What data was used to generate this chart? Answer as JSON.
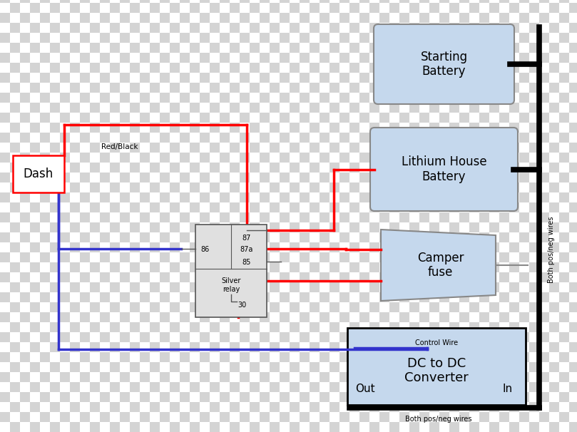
{
  "bg_light": "#ffffff",
  "bg_dark": "#d4d4d4",
  "box_fill": "#c5d8ed",
  "box_edge": "#888888",
  "wire_red": "#ff0000",
  "wire_blue": "#3333cc",
  "wire_black": "#000000",
  "checker_size": 14,
  "fig_w": 8.09,
  "fig_h": 6.06,
  "dpi": 100,
  "relay_label_87": "87",
  "relay_label_87a": "87a",
  "relay_label_85": "85",
  "relay_label_86": "86",
  "relay_label_30": "30",
  "relay_label_name": "Silver\nrelay",
  "dash_label": "Dash",
  "sb_label": "Starting\nBattery",
  "lb_label": "Lithium House\nBattery",
  "cf_label": "Camper\nfuse",
  "dc_label": "DC to DC\nConverter",
  "dc_sub_out": "Out",
  "dc_sub_in": "In",
  "ctrl_wire_label": "Control Wire",
  "red_black_label": "Red/Black",
  "both_bottom": "Both pos/neg wires",
  "both_right": "Both pos/neg wires"
}
